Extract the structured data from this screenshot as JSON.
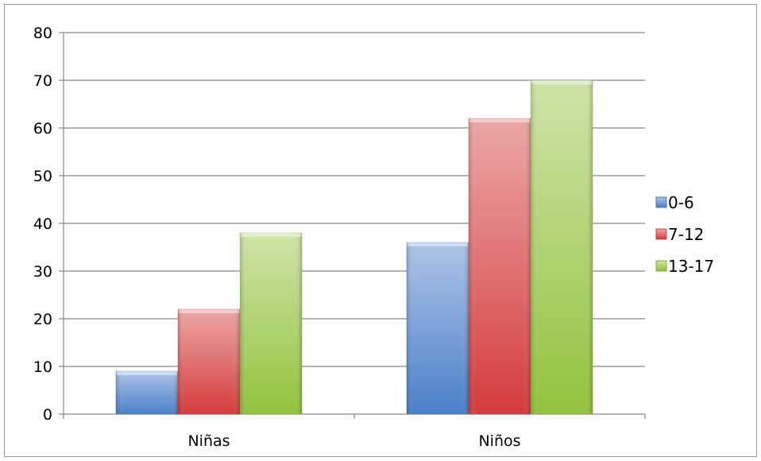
{
  "chart_data": {
    "type": "bar",
    "title": "",
    "xlabel": "",
    "ylabel": "",
    "categories": [
      "Niñas",
      "Niños"
    ],
    "series": [
      {
        "name": "0-6",
        "values": [
          9,
          36
        ],
        "color": "#4a7fc9"
      },
      {
        "name": "7-12",
        "values": [
          22,
          62
        ],
        "color": "#d43c3c"
      },
      {
        "name": "13-17",
        "values": [
          38,
          70
        ],
        "color": "#93c23d"
      }
    ],
    "ylim": [
      0,
      80
    ],
    "yticks": [
      "0",
      "10",
      "20",
      "30",
      "40",
      "50",
      "60",
      "70",
      "80"
    ],
    "grid": true,
    "legend_position": "right"
  }
}
